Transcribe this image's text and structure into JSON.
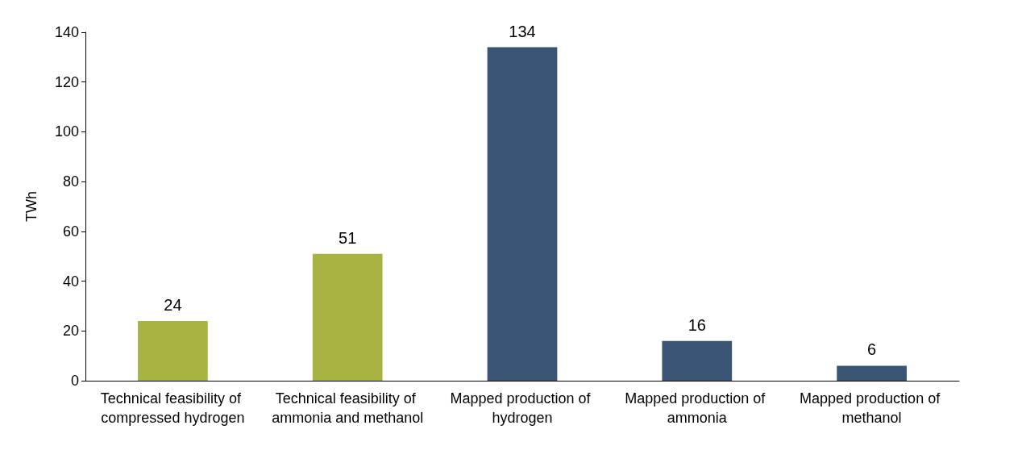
{
  "chart_data": {
    "type": "bar",
    "ylabel": "TWh",
    "categories": [
      "Technical feasibility of compressed hydrogen",
      "Technical feasibility of ammonia and methanol",
      "Mapped production of hydrogen",
      "Mapped production of ammonia",
      "Mapped production of methanol"
    ],
    "values": [
      24,
      51,
      134,
      16,
      6
    ],
    "colors": [
      "#a8b341",
      "#a8b341",
      "#3a5573",
      "#3a5573",
      "#3a5573"
    ],
    "ylim": [
      0,
      140
    ],
    "yticks": [
      0,
      20,
      40,
      60,
      80,
      100,
      120,
      140
    ],
    "grid": false,
    "data_labels": true
  }
}
